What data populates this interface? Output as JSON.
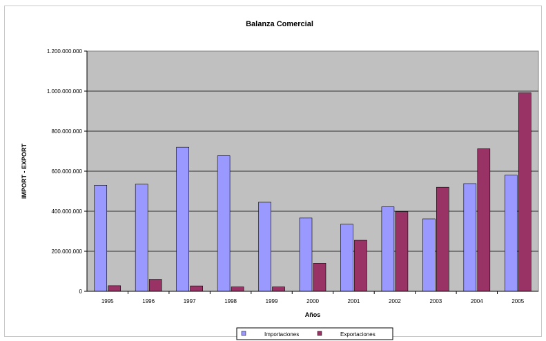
{
  "chart_data": {
    "type": "bar",
    "title": "Balanza Comercial",
    "xlabel": "Años",
    "ylabel": "IMPORT - EXPORT",
    "categories": [
      "1995",
      "1996",
      "1997",
      "1998",
      "1999",
      "2000",
      "2001",
      "2002",
      "2003",
      "2004",
      "2005"
    ],
    "series": [
      {
        "name": "Importaciones",
        "color": "#9999ff",
        "values": [
          530000000,
          535000000,
          720000000,
          677000000,
          445000000,
          366000000,
          335000000,
          422000000,
          362000000,
          538000000,
          580000000
        ]
      },
      {
        "name": "Exportaciones",
        "color": "#993366",
        "values": [
          28000000,
          60000000,
          27000000,
          22000000,
          22000000,
          140000000,
          255000000,
          398000000,
          520000000,
          712000000,
          992000000
        ]
      }
    ],
    "ylim": [
      0,
      1200000000
    ],
    "yticks": [
      "0",
      "200.000.000",
      "400.000.000",
      "600.000.000",
      "800.000.000",
      "1.000.000.000",
      "1.200.000.000"
    ],
    "ytick_values": [
      0,
      200000000,
      400000000,
      600000000,
      800000000,
      1000000000,
      1200000000
    ],
    "grid": true,
    "legend_position": "bottom",
    "plot_background": "#c0c0c0"
  }
}
